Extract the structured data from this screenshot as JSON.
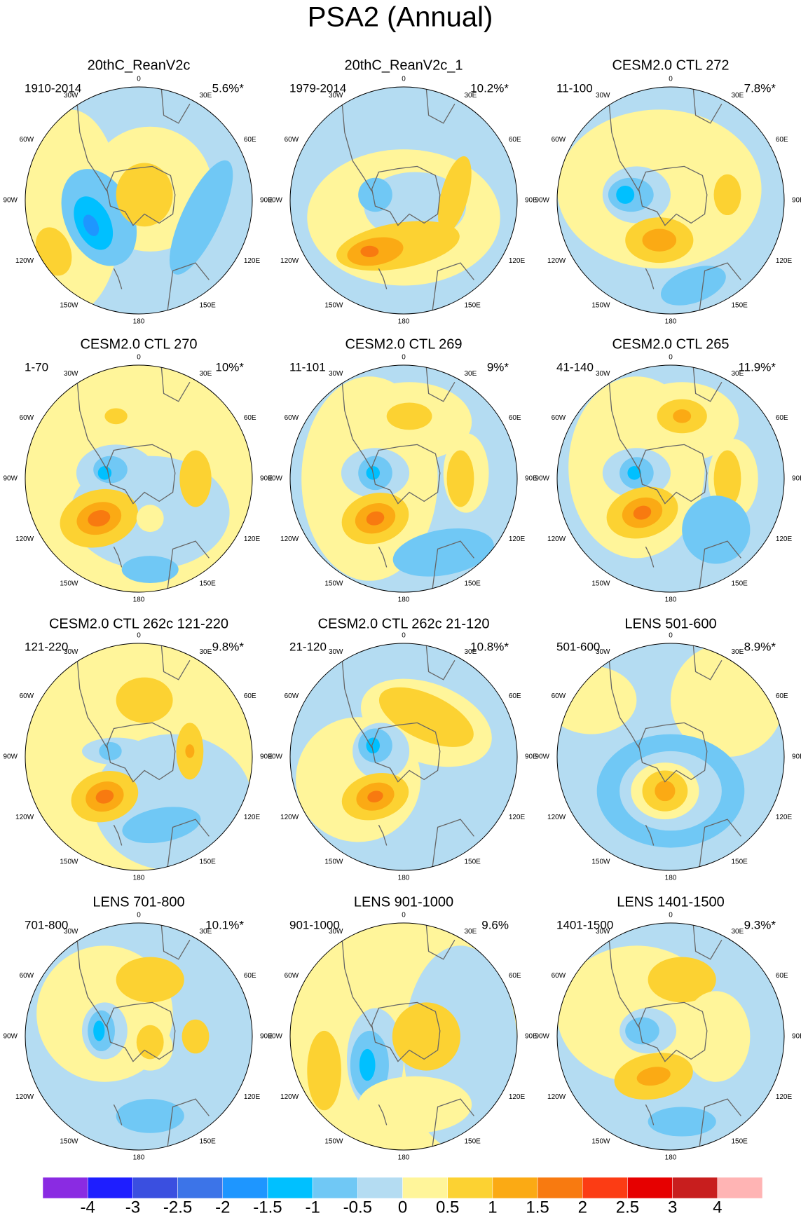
{
  "title": "PSA2 (Annual)",
  "lon_labels": [
    "0",
    "30E",
    "60E",
    "90E",
    "120E",
    "150E",
    "180",
    "150W",
    "120W",
    "90W",
    "60W",
    "30W"
  ],
  "panels": [
    {
      "title": "20thC_ReanV2c",
      "period": "1910-2014",
      "percent": "5.6%*"
    },
    {
      "title": "20thC_ReanV2c_1",
      "period": "1979-2014",
      "percent": "10.2%*"
    },
    {
      "title": "CESM2.0 CTL 272",
      "period": "11-100",
      "percent": "7.8%*"
    },
    {
      "title": "CESM2.0 CTL 270",
      "period": "1-70",
      "percent": "10%*"
    },
    {
      "title": "CESM2.0 CTL 269",
      "period": "11-101",
      "percent": "9%*"
    },
    {
      "title": "CESM2.0 CTL 265",
      "period": "41-140",
      "percent": "11.9%*"
    },
    {
      "title": "CESM2.0 CTL 262c 121-220",
      "period": "121-220",
      "percent": "9.8%*"
    },
    {
      "title": "CESM2.0 CTL 262c 21-120",
      "period": "21-120",
      "percent": "10.8%*"
    },
    {
      "title": "LENS 501-600",
      "period": "501-600",
      "percent": "8.9%*"
    },
    {
      "title": "LENS 701-800",
      "period": "701-800",
      "percent": "10.1%*"
    },
    {
      "title": "LENS 901-1000",
      "period": "901-1000",
      "percent": "9.6%"
    },
    {
      "title": "LENS 1401-1500",
      "period": "1401-1500",
      "percent": "9.3%*"
    }
  ],
  "colorbar": {
    "colors": [
      "#8a2be2",
      "#1e1eff",
      "#3a4fe0",
      "#3c74e8",
      "#1e96ff",
      "#00c0ff",
      "#70c8f5",
      "#b4dcf2",
      "#fff59a",
      "#fcd232",
      "#fbaa14",
      "#f87a10",
      "#fc3c14",
      "#e60000",
      "#c81e1e",
      "#ffb4b4"
    ],
    "labels": [
      -4,
      -3,
      -2.5,
      -2,
      -1.5,
      -1,
      -0.5,
      0,
      0.5,
      1,
      1.5,
      2,
      2.5,
      3,
      4
    ]
  }
}
